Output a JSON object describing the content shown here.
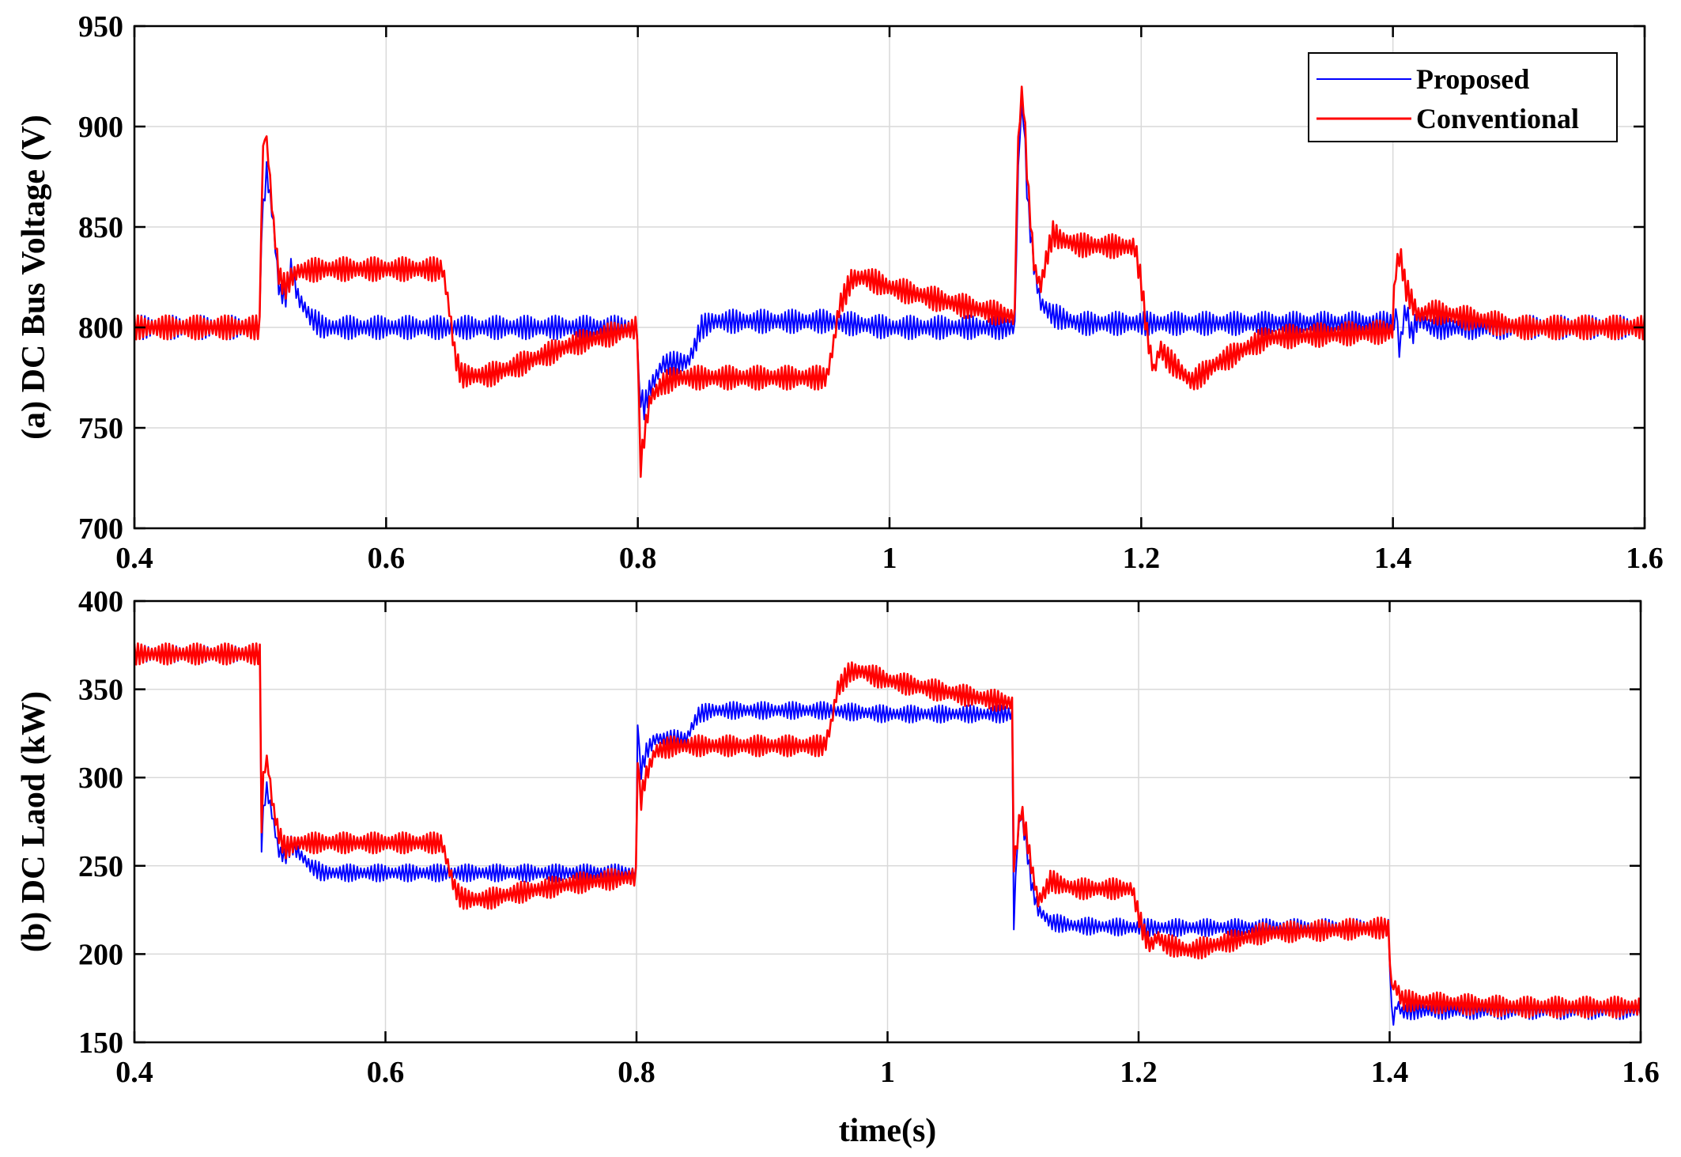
{
  "chart_data": [
    {
      "type": "line",
      "title": "",
      "xlabel": "",
      "ylabel": "(a) DC Bus Voltage (V)",
      "xlim": [
        0.4,
        1.6
      ],
      "ylim": [
        700,
        950
      ],
      "xticks": [
        0.4,
        0.6,
        0.8,
        1.0,
        1.2,
        1.4,
        1.6
      ],
      "xtick_labels": [
        "0.4",
        "0.6",
        "0.8",
        "1",
        "1.2",
        "1.4",
        "1.6"
      ],
      "yticks": [
        700,
        750,
        800,
        850,
        900,
        950
      ],
      "ytick_labels": [
        "700",
        "750",
        "800",
        "850",
        "900",
        "950"
      ],
      "grid": true,
      "legend": {
        "position": "top-right",
        "entries": [
          "Proposed",
          "Conventional"
        ]
      },
      "series": [
        {
          "name": "Proposed",
          "color": "#0000ff",
          "ripple": 6,
          "x": [
            0.4,
            0.5,
            0.5005,
            0.505,
            0.51,
            0.515,
            0.52,
            0.525,
            0.53,
            0.535,
            0.54,
            0.55,
            0.56,
            0.65,
            0.7,
            0.8,
            0.8005,
            0.805,
            0.81,
            0.82,
            0.83,
            0.84,
            0.845,
            0.85,
            0.86,
            0.9,
            0.95,
            1.0,
            1.1,
            1.1005,
            1.103,
            1.106,
            1.11,
            1.115,
            1.12,
            1.13,
            1.15,
            1.2,
            1.3,
            1.4,
            1.4005,
            1.402,
            1.405,
            1.41,
            1.415,
            1.42,
            1.43,
            1.45,
            1.5,
            1.6
          ],
          "values": [
            800,
            800,
            845,
            878,
            855,
            818,
            815,
            830,
            815,
            810,
            805,
            800,
            800,
            800,
            800,
            800,
            770,
            760,
            770,
            782,
            782,
            783,
            790,
            800,
            803,
            803,
            803,
            800,
            800,
            830,
            895,
            912,
            860,
            830,
            812,
            806,
            802,
            802,
            802,
            802,
            788,
            815,
            788,
            810,
            796,
            805,
            800,
            800,
            800,
            800
          ]
        },
        {
          "name": "Conventional",
          "color": "#ff0000",
          "ripple": 6,
          "x": [
            0.4,
            0.5,
            0.5005,
            0.503,
            0.506,
            0.51,
            0.515,
            0.52,
            0.525,
            0.53,
            0.55,
            0.6,
            0.645,
            0.65,
            0.655,
            0.66,
            0.68,
            0.7,
            0.75,
            0.8,
            0.8005,
            0.802,
            0.806,
            0.81,
            0.82,
            0.83,
            0.85,
            0.9,
            0.95,
            0.955,
            0.96,
            0.97,
            0.98,
            1.0,
            1.05,
            1.1,
            1.1005,
            1.103,
            1.106,
            1.11,
            1.115,
            1.12,
            1.125,
            1.13,
            1.135,
            1.15,
            1.195,
            1.2,
            1.205,
            1.21,
            1.215,
            1.22,
            1.24,
            1.26,
            1.3,
            1.4,
            1.4005,
            1.403,
            1.406,
            1.41,
            1.42,
            1.43,
            1.5,
            1.6
          ],
          "values": [
            800,
            800,
            850,
            900,
            888,
            855,
            825,
            820,
            825,
            828,
            829,
            829,
            829,
            810,
            785,
            776,
            776,
            780,
            792,
            800,
            772,
            730,
            750,
            765,
            772,
            775,
            775,
            775,
            775,
            790,
            810,
            824,
            825,
            820,
            812,
            805,
            850,
            905,
            918,
            870,
            830,
            820,
            835,
            847,
            844,
            841,
            840,
            822,
            795,
            778,
            790,
            785,
            773,
            782,
            795,
            798,
            815,
            832,
            836,
            820,
            806,
            808,
            800,
            800
          ]
        }
      ]
    },
    {
      "type": "line",
      "title": "",
      "xlabel": "time(s)",
      "ylabel": "(b) DC Laod (kW)",
      "xlim": [
        0.4,
        1.6
      ],
      "ylim": [
        150,
        400
      ],
      "xticks": [
        0.4,
        0.6,
        0.8,
        1.0,
        1.2,
        1.4,
        1.6
      ],
      "xtick_labels": [
        "0.4",
        "0.6",
        "0.8",
        "1",
        "1.2",
        "1.4",
        "1.6"
      ],
      "yticks": [
        150,
        200,
        250,
        300,
        350,
        400
      ],
      "ytick_labels": [
        "150",
        "200",
        "250",
        "300",
        "350",
        "400"
      ],
      "grid": true,
      "legend": null,
      "series": [
        {
          "name": "Proposed",
          "color": "#0000ff",
          "ripple": 5,
          "x": [
            0.4,
            0.5,
            0.5005,
            0.502,
            0.505,
            0.51,
            0.515,
            0.52,
            0.525,
            0.53,
            0.54,
            0.55,
            0.6,
            0.7,
            0.8,
            0.8005,
            0.803,
            0.808,
            0.815,
            0.83,
            0.84,
            0.845,
            0.85,
            0.86,
            0.9,
            0.95,
            1.0,
            1.1,
            1.1005,
            1.103,
            1.106,
            1.11,
            1.115,
            1.12,
            1.13,
            1.15,
            1.2,
            1.3,
            1.4,
            1.4005,
            1.403,
            1.406,
            1.41,
            1.42,
            1.43,
            1.5,
            1.6
          ],
          "values": [
            370,
            370,
            250,
            275,
            295,
            278,
            258,
            255,
            262,
            258,
            250,
            246,
            246,
            246,
            246,
            340,
            302,
            315,
            322,
            322,
            322,
            330,
            336,
            338,
            338,
            338,
            336,
            336,
            215,
            260,
            280,
            265,
            238,
            225,
            218,
            216,
            215,
            215,
            215,
            170,
            163,
            172,
            167,
            168,
            168,
            168,
            168
          ]
        },
        {
          "name": "Conventional",
          "color": "#ff0000",
          "ripple": 6,
          "x": [
            0.4,
            0.5,
            0.5005,
            0.503,
            0.506,
            0.51,
            0.515,
            0.52,
            0.53,
            0.55,
            0.6,
            0.645,
            0.65,
            0.655,
            0.66,
            0.665,
            0.68,
            0.7,
            0.75,
            0.8,
            0.8005,
            0.803,
            0.807,
            0.815,
            0.83,
            0.85,
            0.9,
            0.95,
            0.955,
            0.96,
            0.97,
            0.98,
            1.0,
            1.05,
            1.1,
            1.1005,
            1.103,
            1.106,
            1.11,
            1.115,
            1.12,
            1.125,
            1.13,
            1.135,
            1.15,
            1.195,
            1.2,
            1.205,
            1.21,
            1.215,
            1.22,
            1.24,
            1.26,
            1.3,
            1.4,
            1.4005,
            1.403,
            1.406,
            1.41,
            1.42,
            1.5,
            1.6
          ],
          "values": [
            370,
            370,
            260,
            305,
            310,
            285,
            268,
            260,
            263,
            263,
            263,
            263,
            250,
            238,
            232,
            231,
            231,
            234,
            240,
            244,
            320,
            285,
            300,
            315,
            318,
            318,
            318,
            318,
            330,
            350,
            360,
            360,
            355,
            348,
            342,
            250,
            262,
            282,
            270,
            248,
            230,
            235,
            242,
            240,
            237,
            237,
            222,
            210,
            205,
            210,
            206,
            202,
            205,
            212,
            215,
            177,
            183,
            180,
            174,
            173,
            170,
            170
          ]
        }
      ]
    }
  ]
}
